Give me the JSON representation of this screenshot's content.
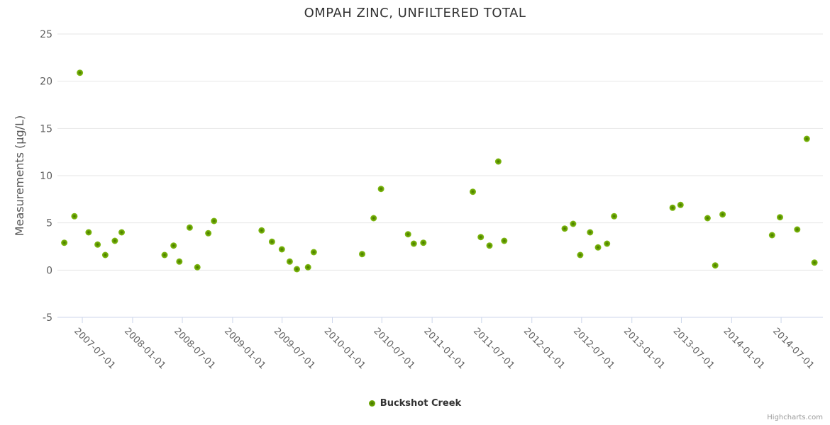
{
  "chart_data": {
    "type": "scatter",
    "title": "OMPAH ZINC, UNFILTERED TOTAL",
    "xlabel": "",
    "ylabel": "Measurements (µg/L)",
    "ylim": [
      -5,
      25
    ],
    "y_ticks": [
      -5,
      0,
      5,
      10,
      15,
      20,
      25
    ],
    "x_range": [
      "2007-04-01",
      "2014-12-01"
    ],
    "x_ticks": [
      "2007-07-01",
      "2008-01-01",
      "2008-07-01",
      "2009-01-01",
      "2009-07-01",
      "2010-01-01",
      "2010-07-01",
      "2011-01-01",
      "2011-07-01",
      "2012-01-01",
      "2012-07-01",
      "2013-01-01",
      "2013-07-01",
      "2014-01-01",
      "2014-07-01"
    ],
    "grid": "horizontal",
    "legend_position": "bottom-center",
    "series": [
      {
        "name": "Buckshot Creek",
        "color": "#72a500",
        "marker_center_color": "#426f00",
        "marker_edge_color": "#85bd1d",
        "points": [
          [
            "2007-04-26",
            2.9
          ],
          [
            "2007-06-02",
            5.7
          ],
          [
            "2007-06-22",
            20.9
          ],
          [
            "2007-07-24",
            4.0
          ],
          [
            "2007-08-26",
            2.7
          ],
          [
            "2007-09-23",
            1.6
          ],
          [
            "2007-10-28",
            3.1
          ],
          [
            "2007-11-22",
            4.0
          ],
          [
            "2008-04-27",
            1.6
          ],
          [
            "2008-05-30",
            2.6
          ],
          [
            "2008-06-20",
            0.9
          ],
          [
            "2008-07-28",
            4.5
          ],
          [
            "2008-08-25",
            0.3
          ],
          [
            "2008-10-04",
            3.9
          ],
          [
            "2008-10-25",
            5.2
          ],
          [
            "2009-04-17",
            4.2
          ],
          [
            "2009-05-25",
            3.0
          ],
          [
            "2009-06-30",
            2.2
          ],
          [
            "2009-07-29",
            0.9
          ],
          [
            "2009-08-24",
            0.1
          ],
          [
            "2009-10-04",
            0.3
          ],
          [
            "2009-10-25",
            1.9
          ],
          [
            "2010-04-20",
            1.7
          ],
          [
            "2010-06-01",
            5.5
          ],
          [
            "2010-06-28",
            8.6
          ],
          [
            "2010-10-05",
            3.8
          ],
          [
            "2010-10-26",
            2.8
          ],
          [
            "2010-11-30",
            2.9
          ],
          [
            "2011-05-30",
            8.3
          ],
          [
            "2011-06-28",
            3.5
          ],
          [
            "2011-07-30",
            2.6
          ],
          [
            "2011-08-31",
            11.5
          ],
          [
            "2011-09-22",
            3.1
          ],
          [
            "2012-04-30",
            4.4
          ],
          [
            "2012-05-31",
            4.9
          ],
          [
            "2012-06-26",
            1.6
          ],
          [
            "2012-08-01",
            4.0
          ],
          [
            "2012-08-30",
            2.4
          ],
          [
            "2012-10-02",
            2.8
          ],
          [
            "2012-10-28",
            5.7
          ],
          [
            "2013-05-30",
            6.6
          ],
          [
            "2013-06-28",
            6.9
          ],
          [
            "2013-10-05",
            5.5
          ],
          [
            "2013-11-02",
            0.5
          ],
          [
            "2013-11-29",
            5.9
          ],
          [
            "2014-05-29",
            3.7
          ],
          [
            "2014-06-27",
            5.6
          ],
          [
            "2014-08-29",
            4.3
          ],
          [
            "2014-10-03",
            13.9
          ],
          [
            "2014-10-31",
            0.8
          ]
        ]
      }
    ],
    "colors": {
      "title": "#333333",
      "axis_title": "#555555",
      "tick_label": "#606060",
      "grid_line": "#e6e6e6",
      "axis_line": "#ccd6eb"
    }
  },
  "legend": {
    "label": "Buckshot Creek"
  },
  "credits": {
    "label": "Highcharts.com"
  }
}
